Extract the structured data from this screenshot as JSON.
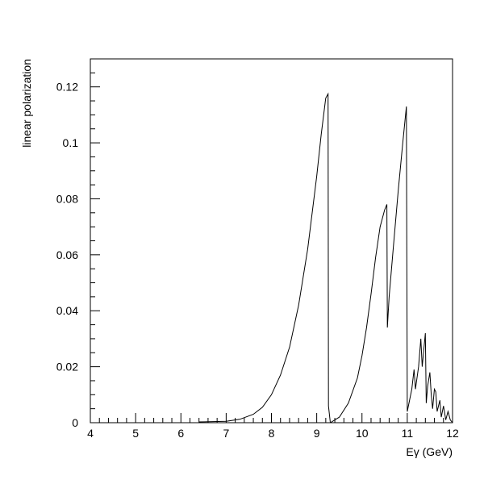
{
  "chart_data": {
    "type": "line",
    "title": "",
    "xlabel": "Eγ (GeV)",
    "ylabel": "linear polarization",
    "xlim": [
      4,
      12
    ],
    "ylim": [
      0,
      0.13
    ],
    "x_ticks": [
      "4",
      "5",
      "6",
      "7",
      "8",
      "9",
      "10",
      "11",
      "12"
    ],
    "y_ticks": [
      "0",
      "0.02",
      "0.04",
      "0.06",
      "0.08",
      "0.1",
      "0.12"
    ],
    "grid": false,
    "legend": "none",
    "series": [
      {
        "x": [
          6.4,
          7.0,
          7.3,
          7.6,
          7.8,
          8.0,
          8.2,
          8.4,
          8.6,
          8.8,
          9.0,
          9.1,
          9.2,
          9.25,
          9.26,
          9.3
        ],
        "y": [
          0.0003,
          0.0005,
          0.0012,
          0.003,
          0.0055,
          0.01,
          0.017,
          0.027,
          0.042,
          0.062,
          0.088,
          0.103,
          0.116,
          0.1175,
          0.006,
          0.0
        ]
      },
      {
        "x": [
          9.3,
          9.5,
          9.7,
          9.9,
          10.0,
          10.1,
          10.2,
          10.3,
          10.4,
          10.5,
          10.55,
          10.56,
          10.6,
          10.7,
          10.8,
          10.9,
          10.98,
          10.99,
          11.0
        ],
        "y": [
          0.0,
          0.002,
          0.007,
          0.016,
          0.024,
          0.034,
          0.046,
          0.059,
          0.07,
          0.076,
          0.078,
          0.034,
          0.045,
          0.064,
          0.083,
          0.1,
          0.113,
          0.06,
          0.004
        ]
      },
      {
        "x": [
          11.0,
          11.1,
          11.15,
          11.18,
          11.25,
          11.3,
          11.33,
          11.4,
          11.42,
          11.45,
          11.5,
          11.53,
          11.56,
          11.6,
          11.63,
          11.66,
          11.72,
          11.75,
          11.8,
          11.85,
          11.9,
          11.95,
          12.0
        ],
        "y": [
          0.004,
          0.012,
          0.019,
          0.012,
          0.02,
          0.03,
          0.02,
          0.032,
          0.007,
          0.013,
          0.018,
          0.01,
          0.005,
          0.012,
          0.011,
          0.004,
          0.008,
          0.002,
          0.006,
          0.001,
          0.004,
          0.001,
          0.0
        ]
      }
    ]
  }
}
